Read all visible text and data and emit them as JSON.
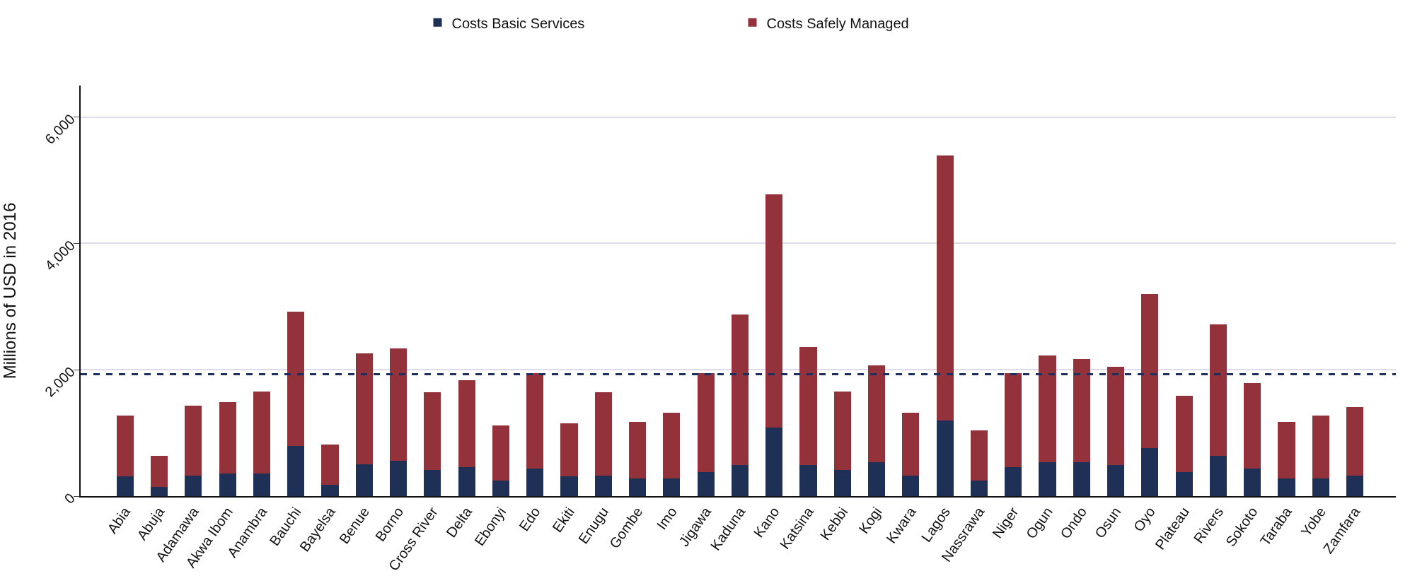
{
  "chart_data": {
    "type": "bar",
    "stacked": true,
    "ylabel": "Millions of USD in 2016",
    "categories": [
      "Abia",
      "Abuja",
      "Adamawa",
      "Akwa Ibom",
      "Anambra",
      "Bauchi",
      "Bayelsa",
      "Benue",
      "Borno",
      "Cross River",
      "Delta",
      "Ebonyi",
      "Edo",
      "Ekiti",
      "Enugu",
      "Gombe",
      "Imo",
      "Jigawa",
      "Kaduna",
      "Kano",
      "Katsina",
      "Kebbi",
      "Kogi",
      "Kwara",
      "Lagos",
      "Nassrawa",
      "Niger",
      "Ogun",
      "Ondo",
      "Osun",
      "Oyo",
      "Plateau",
      "Rivers",
      "Sokoto",
      "Taraba",
      "Yobe",
      "Zamfara"
    ],
    "series": [
      {
        "name": "Costs Basic Services",
        "color": "#1f3057",
        "values": [
          310,
          150,
          330,
          355,
          355,
          790,
          175,
          505,
          555,
          410,
          460,
          250,
          435,
          310,
          330,
          285,
          285,
          385,
          490,
          1080,
          490,
          410,
          540,
          330,
          1200,
          250,
          460,
          540,
          540,
          490,
          765,
          385,
          640,
          435,
          285,
          285,
          330
        ]
      },
      {
        "name": "Costs Safely Managed",
        "color": "#94323b",
        "values": [
          960,
          485,
          1100,
          1135,
          1305,
          2135,
          640,
          1750,
          1780,
          1230,
          1380,
          870,
          1510,
          840,
          1310,
          890,
          1040,
          1560,
          2385,
          3695,
          1870,
          1250,
          1535,
          995,
          4190,
          795,
          1485,
          1690,
          1635,
          1560,
          2440,
          1200,
          2075,
          1355,
          890,
          990,
          1075
        ]
      }
    ],
    "ylim": [
      0,
      6500
    ],
    "yticks": [
      {
        "value": 0,
        "label": "0"
      },
      {
        "value": 2000,
        "label": "2,000"
      },
      {
        "value": 4000,
        "label": "4,000"
      },
      {
        "value": 6000,
        "label": "6,000"
      }
    ],
    "grid": "y",
    "legend": "top",
    "ref_lines": [
      {
        "axis": "y",
        "value": 1930,
        "color": "#1f2f5a",
        "line_style": "dashed"
      }
    ]
  }
}
